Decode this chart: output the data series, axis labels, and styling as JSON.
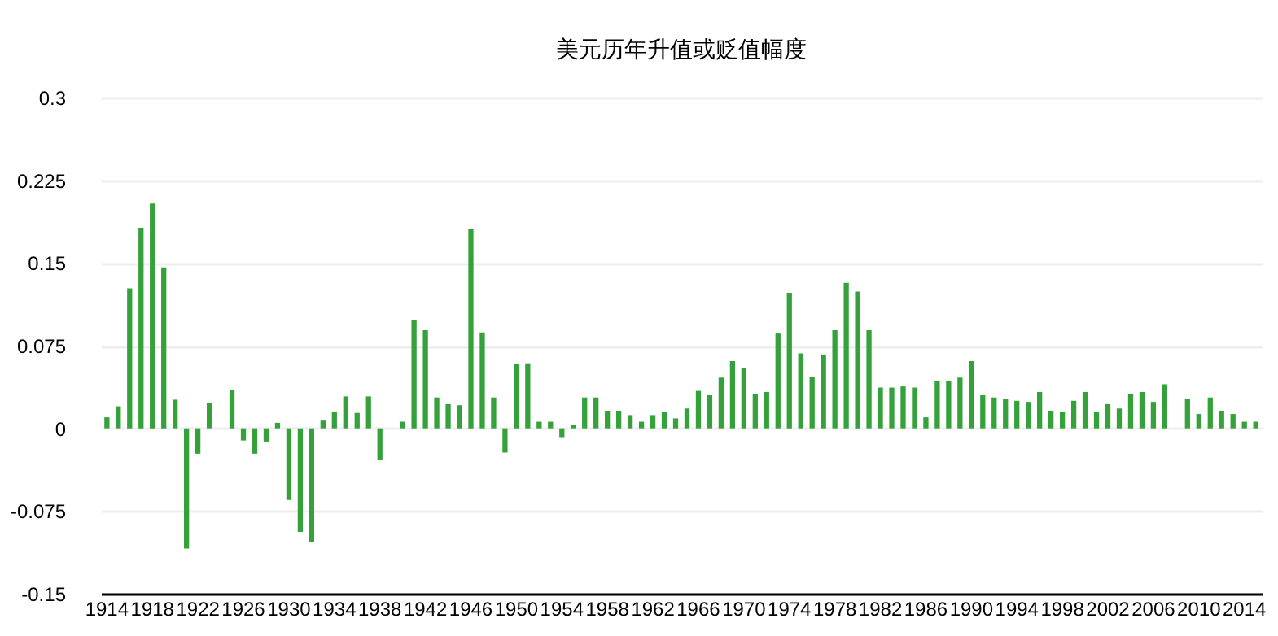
{
  "chart_data": {
    "type": "bar",
    "title": "美元历年升值或贬值幅度",
    "categories": [
      "1914",
      null,
      null,
      null,
      "1918",
      null,
      null,
      null,
      "1922",
      null,
      null,
      null,
      "1926",
      null,
      null,
      null,
      "1930",
      null,
      null,
      null,
      "1934",
      null,
      null,
      null,
      "1938",
      null,
      null,
      null,
      "1942",
      null,
      null,
      null,
      "1946",
      null,
      null,
      null,
      "1950",
      null,
      null,
      null,
      "1954",
      null,
      null,
      null,
      "1958",
      null,
      null,
      null,
      "1962",
      null,
      null,
      null,
      "1966",
      null,
      null,
      null,
      "1970",
      null,
      null,
      null,
      "1974",
      null,
      null,
      null,
      "1978",
      null,
      null,
      null,
      "1982",
      null,
      null,
      null,
      "1986",
      null,
      null,
      null,
      "1990",
      null,
      null,
      null,
      "1994",
      null,
      null,
      null,
      "1998",
      null,
      null,
      null,
      "2002",
      null,
      null,
      null,
      "2006",
      null,
      null,
      null,
      "2010",
      null,
      null,
      null,
      "2014",
      null
    ],
    "values": [
      0.01,
      0.02,
      0.127,
      0.182,
      0.204,
      0.146,
      0.026,
      -0.109,
      -0.023,
      0.023,
      0,
      0.035,
      -0.011,
      -0.023,
      -0.012,
      0.005,
      -0.065,
      -0.094,
      -0.103,
      0.007,
      0.015,
      0.029,
      0.014,
      0.029,
      -0.029,
      0,
      0.006,
      0.098,
      0.089,
      0.028,
      0.022,
      0.021,
      0.181,
      0.087,
      0.028,
      -0.022,
      0.058,
      0.059,
      0.006,
      0.006,
      -0.008,
      0.003,
      0.028,
      0.028,
      0.016,
      0.016,
      0.012,
      0.006,
      0.012,
      0.015,
      0.009,
      0.018,
      0.034,
      0.03,
      0.046,
      0.061,
      0.055,
      0.031,
      0.033,
      0.086,
      0.123,
      0.068,
      0.047,
      0.067,
      0.089,
      0.132,
      0.124,
      0.089,
      0.037,
      0.037,
      0.038,
      0.037,
      0.01,
      0.043,
      0.043,
      0.046,
      0.061,
      0.03,
      0.028,
      0.027,
      0.025,
      0.024,
      0.033,
      0.016,
      0.015,
      0.025,
      0.033,
      0.015,
      0.022,
      0.018,
      0.031,
      0.033,
      0.024,
      0.04,
      0,
      0.027,
      0.013,
      0.028,
      0.016,
      0.013,
      0.006,
      0.006
    ],
    "color": "#34a13a",
    "ylim": [
      -0.15,
      0.3
    ],
    "yticks": [
      -0.15,
      -0.075,
      0,
      0.075,
      0.15,
      0.225,
      0.3
    ],
    "grid": "y"
  }
}
